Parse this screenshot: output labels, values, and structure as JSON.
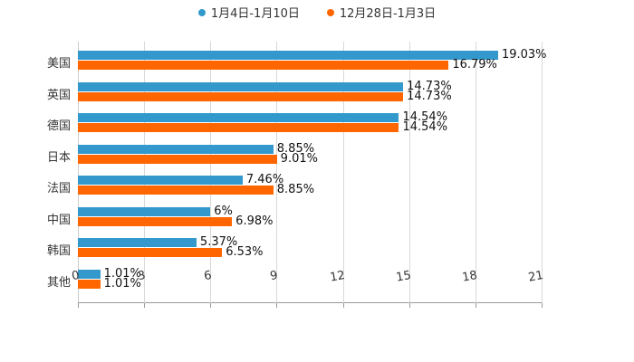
{
  "chart_data": {
    "type": "bar",
    "orientation": "horizontal",
    "title": "",
    "xlabel": "",
    "ylabel": "",
    "xlim": [
      0,
      21
    ],
    "xticks": [
      "0",
      "3",
      "6",
      "9",
      "12",
      "15",
      "18",
      "21"
    ],
    "grid": true,
    "legend_position": "top",
    "categories": [
      "美国",
      "英国",
      "德国",
      "日本",
      "法国",
      "中国",
      "韩国",
      "其他"
    ],
    "series": [
      {
        "name": "1月4日-1月10日",
        "color": "#3399cc",
        "values": [
          19.03,
          14.73,
          14.54,
          8.85,
          7.46,
          6,
          5.37,
          1.01
        ],
        "labels": [
          "19.03%",
          "14.73%",
          "14.54%",
          "8.85%",
          "7.46%",
          "6%",
          "5.37%",
          "1.01%"
        ]
      },
      {
        "name": "12月28日-1月3日",
        "color": "#ff6600",
        "values": [
          16.79,
          14.73,
          14.54,
          9.01,
          8.85,
          6.98,
          6.53,
          1.01
        ],
        "labels": [
          "16.79%",
          "14.73%",
          "14.54%",
          "9.01%",
          "8.85%",
          "6.98%",
          "6.53%",
          "1.01%"
        ]
      }
    ]
  }
}
